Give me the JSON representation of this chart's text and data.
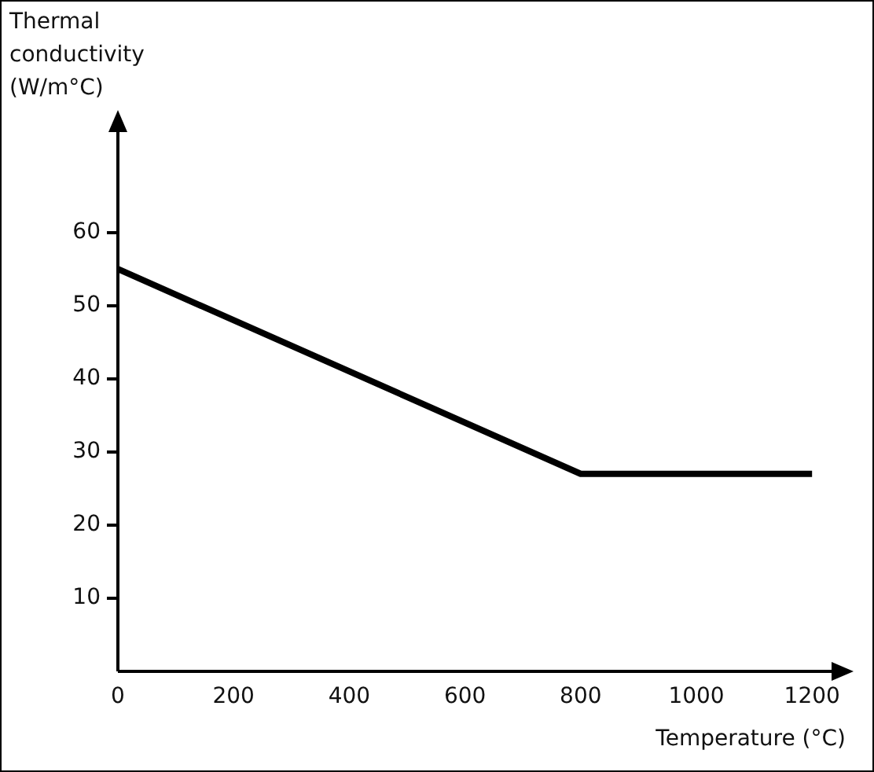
{
  "chart_data": {
    "type": "line",
    "ylabel": "Thermal\nconductivity\n(W/m°C)",
    "xlabel": "Temperature (°C)",
    "x": [
      0,
      800,
      1200
    ],
    "series": [
      {
        "color": "#000000",
        "values": [
          55,
          27,
          27
        ]
      }
    ],
    "xlim": [
      0,
      1250
    ],
    "xticks": [
      0,
      200,
      400,
      600,
      800,
      1000,
      1200
    ],
    "ylim": [
      0,
      75
    ],
    "yticks": [
      10,
      20,
      30,
      40,
      50,
      60
    ],
    "grid": false,
    "legend": false,
    "marker": "none",
    "line_style": "solid"
  }
}
